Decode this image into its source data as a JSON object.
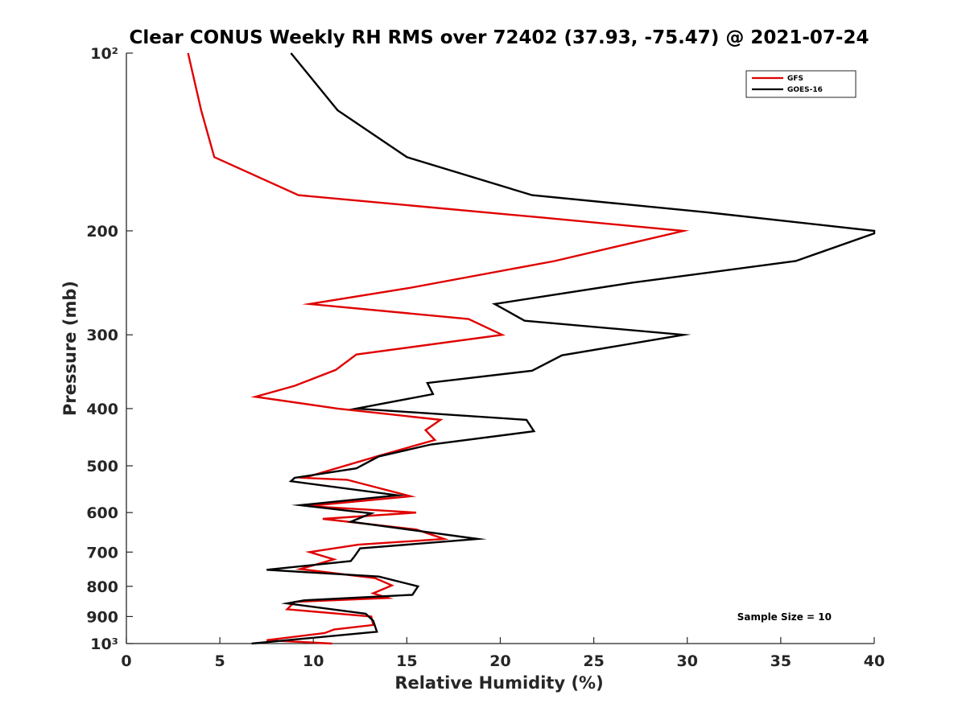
{
  "chart_data": {
    "type": "line",
    "title": "Clear CONUS Weekly RH RMS over 72402 (37.93, -75.47) @ 2021-07-24",
    "xlabel": "Relative Humidity (%)",
    "ylabel": "Pressure (mb)",
    "xlim": [
      0,
      40
    ],
    "ylim": [
      100,
      1000
    ],
    "yscale": "log",
    "y_reversed": true,
    "x_ticks": [
      0,
      5,
      10,
      15,
      20,
      25,
      30,
      35,
      40
    ],
    "x_tick_labels": [
      "0",
      "5",
      "10",
      "15",
      "20",
      "25",
      "30",
      "35",
      "40"
    ],
    "y_ticks": [
      100,
      200,
      300,
      400,
      500,
      600,
      700,
      800,
      900,
      1000
    ],
    "y_tick_labels": [
      "10²",
      "200",
      "300",
      "400",
      "500",
      "600",
      "700",
      "800",
      "900",
      "10³"
    ],
    "legend_position": "top-right",
    "annotation": "Sample Size = 10",
    "series": [
      {
        "name": "GFS",
        "color": "#e00000",
        "points": [
          [
            3.3,
            100
          ],
          [
            4.0,
            125
          ],
          [
            4.7,
            150
          ],
          [
            9.2,
            174
          ],
          [
            22.3,
            190
          ],
          [
            29.8,
            200
          ],
          [
            22.9,
            225
          ],
          [
            15.1,
            250
          ],
          [
            9.8,
            266
          ],
          [
            18.3,
            282
          ],
          [
            20.1,
            300
          ],
          [
            12.3,
            324
          ],
          [
            11.2,
            344
          ],
          [
            9.0,
            366
          ],
          [
            6.9,
            382
          ],
          [
            11.3,
            400
          ],
          [
            16.8,
            418
          ],
          [
            16.0,
            435
          ],
          [
            16.5,
            452
          ],
          [
            13.5,
            481
          ],
          [
            9.5,
            524
          ],
          [
            11.8,
            528
          ],
          [
            15.2,
            563
          ],
          [
            9.7,
            585
          ],
          [
            15.5,
            600
          ],
          [
            10.5,
            615
          ],
          [
            15.5,
            641
          ],
          [
            17.0,
            665
          ],
          [
            12.4,
            680
          ],
          [
            9.8,
            700
          ],
          [
            11.1,
            720
          ],
          [
            9.3,
            748
          ],
          [
            13.3,
            775
          ],
          [
            14.2,
            797
          ],
          [
            13.2,
            822
          ],
          [
            14.0,
            837
          ],
          [
            9.0,
            850
          ],
          [
            8.6,
            875
          ],
          [
            13.1,
            900
          ],
          [
            13.2,
            930
          ],
          [
            11.1,
            947
          ],
          [
            10.6,
            960
          ],
          [
            7.5,
            987
          ],
          [
            11.0,
            1000
          ]
        ]
      },
      {
        "name": "GOES-16",
        "color": "#000000",
        "points": [
          [
            8.8,
            100
          ],
          [
            11.3,
            125
          ],
          [
            15.0,
            150
          ],
          [
            21.7,
            174
          ],
          [
            31.0,
            186
          ],
          [
            40.0,
            200
          ],
          [
            40.0,
            202
          ],
          [
            35.8,
            225
          ],
          [
            27.0,
            245
          ],
          [
            19.7,
            266
          ],
          [
            21.3,
            284
          ],
          [
            29.8,
            300
          ],
          [
            23.3,
            325
          ],
          [
            21.7,
            345
          ],
          [
            16.1,
            362
          ],
          [
            16.4,
            378
          ],
          [
            12.3,
            400
          ],
          [
            21.4,
            418
          ],
          [
            21.8,
            437
          ],
          [
            16.3,
            460
          ],
          [
            13.5,
            482
          ],
          [
            12.3,
            505
          ],
          [
            9.0,
            524
          ],
          [
            8.8,
            531
          ],
          [
            14.5,
            561
          ],
          [
            9.3,
            583
          ],
          [
            13.1,
            602
          ],
          [
            12.0,
            622
          ],
          [
            15.7,
            645
          ],
          [
            18.8,
            665
          ],
          [
            12.5,
            690
          ],
          [
            12.2,
            712
          ],
          [
            12.0,
            725
          ],
          [
            7.5,
            750
          ],
          [
            13.5,
            770
          ],
          [
            15.6,
            800
          ],
          [
            15.3,
            827
          ],
          [
            9.5,
            845
          ],
          [
            8.6,
            855
          ],
          [
            12.8,
            890
          ],
          [
            13.2,
            915
          ],
          [
            13.4,
            955
          ],
          [
            6.7,
            1000
          ]
        ]
      }
    ]
  }
}
